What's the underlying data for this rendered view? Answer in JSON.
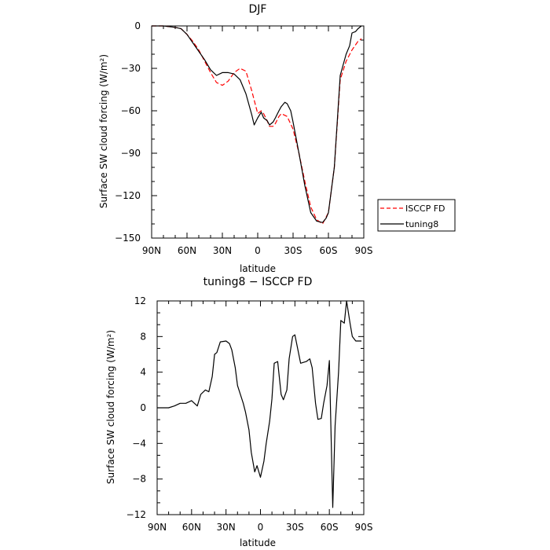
{
  "chart_data": [
    {
      "type": "line",
      "title": "DJF",
      "xlabel": "latitude",
      "ylabel": "Surface SW cloud forcing (W/m²)",
      "xlim": [
        -90,
        90
      ],
      "ylim": [
        -150,
        0
      ],
      "x_ticks": [
        -90,
        -60,
        -30,
        0,
        30,
        60,
        90
      ],
      "x_tick_labels": [
        "90N",
        "60N",
        "30N",
        "0",
        "30S",
        "60S",
        "90S"
      ],
      "y_ticks": [
        0,
        -30,
        -60,
        -90,
        -120,
        -150
      ],
      "y_tick_labels": [
        "0",
        "−30",
        "−60",
        "−90",
        "−120",
        "−150"
      ],
      "legend_position": "right",
      "series": [
        {
          "name": "ISCCP FD",
          "color": "#ff0000",
          "dash": "dashed",
          "x": [
            -90,
            -80,
            -70,
            -65,
            -60,
            -55,
            -50,
            -45,
            -40,
            -35,
            -30,
            -25,
            -20,
            -15,
            -10,
            -5,
            0,
            3,
            5,
            8,
            10,
            13,
            15,
            18,
            20,
            25,
            30,
            35,
            40,
            45,
            50,
            55,
            60,
            65,
            70,
            75,
            80,
            85,
            88
          ],
          "y": [
            0,
            0,
            -1,
            -2,
            -6,
            -11,
            -17,
            -25,
            -33,
            -40,
            -42,
            -39,
            -33,
            -30,
            -32,
            -46,
            -62,
            -60,
            -62,
            -67,
            -71,
            -71,
            -69,
            -64,
            -62,
            -64,
            -73,
            -90,
            -110,
            -128,
            -137,
            -140,
            -132,
            -100,
            -38,
            -25,
            -17,
            -11,
            -9
          ]
        },
        {
          "name": "tuning8",
          "color": "#000000",
          "dash": "solid",
          "x": [
            -90,
            -80,
            -70,
            -65,
            -60,
            -55,
            -50,
            -45,
            -40,
            -35,
            -30,
            -25,
            -20,
            -15,
            -10,
            -5,
            -3,
            0,
            3,
            5,
            8,
            10,
            13,
            15,
            18,
            20,
            23,
            25,
            28,
            30,
            35,
            40,
            45,
            50,
            55,
            58,
            60,
            65,
            70,
            75,
            78,
            80,
            83,
            85,
            88
          ],
          "y": [
            0,
            0,
            -1,
            -2,
            -6,
            -12,
            -18,
            -24,
            -31,
            -35,
            -33,
            -33,
            -34,
            -38,
            -48,
            -63,
            -70,
            -65,
            -61,
            -65,
            -67,
            -70,
            -68,
            -65,
            -60,
            -57,
            -54,
            -55,
            -60,
            -68,
            -90,
            -113,
            -132,
            -138,
            -139,
            -136,
            -132,
            -100,
            -35,
            -20,
            -14,
            -5,
            -4,
            -2,
            0
          ]
        }
      ]
    },
    {
      "type": "line",
      "title": "tuning8 − ISCCP FD",
      "xlabel": "latitude",
      "ylabel": "Surface SW cloud forcing (W/m²)",
      "xlim": [
        -90,
        90
      ],
      "ylim": [
        -12,
        12
      ],
      "x_ticks": [
        -90,
        -60,
        -30,
        0,
        30,
        60,
        90
      ],
      "x_tick_labels": [
        "90N",
        "60N",
        "30N",
        "0",
        "30S",
        "60S",
        "90S"
      ],
      "y_ticks": [
        12,
        8,
        4,
        0,
        -4,
        -8,
        -12
      ],
      "y_tick_labels": [
        "12",
        "8",
        "4",
        "0",
        "−4",
        "−8",
        "−12"
      ],
      "series": [
        {
          "color": "#000000",
          "dash": "solid",
          "x": [
            -90,
            -85,
            -80,
            -75,
            -70,
            -65,
            -60,
            -55,
            -52,
            -48,
            -45,
            -42,
            -40,
            -38,
            -35,
            -30,
            -27,
            -25,
            -22,
            -20,
            -15,
            -13,
            -10,
            -8,
            -5,
            -3,
            0,
            3,
            5,
            8,
            10,
            12,
            15,
            18,
            20,
            23,
            25,
            28,
            30,
            35,
            40,
            43,
            45,
            48,
            50,
            53,
            55,
            58,
            60,
            63,
            65,
            68,
            70,
            73,
            75,
            78,
            80,
            83,
            85,
            88
          ],
          "y": [
            0,
            0,
            0,
            0.2,
            0.5,
            0.5,
            0.8,
            0.2,
            1.5,
            2.0,
            1.8,
            3.5,
            6.0,
            6.2,
            7.4,
            7.5,
            7.2,
            6.5,
            4.5,
            2.5,
            0.5,
            -0.5,
            -2.5,
            -5.0,
            -7.2,
            -6.5,
            -7.8,
            -6.0,
            -4.0,
            -1.5,
            1.0,
            5.0,
            5.2,
            1.5,
            0.9,
            2.0,
            5.5,
            8.0,
            8.2,
            5.0,
            5.2,
            5.5,
            4.5,
            0.5,
            -1.3,
            -1.2,
            0.5,
            2.5,
            5.3,
            -11.2,
            -2.0,
            4.0,
            9.8,
            9.5,
            12.0,
            9.5,
            8.0,
            7.5,
            7.5,
            7.5
          ]
        }
      ]
    }
  ]
}
